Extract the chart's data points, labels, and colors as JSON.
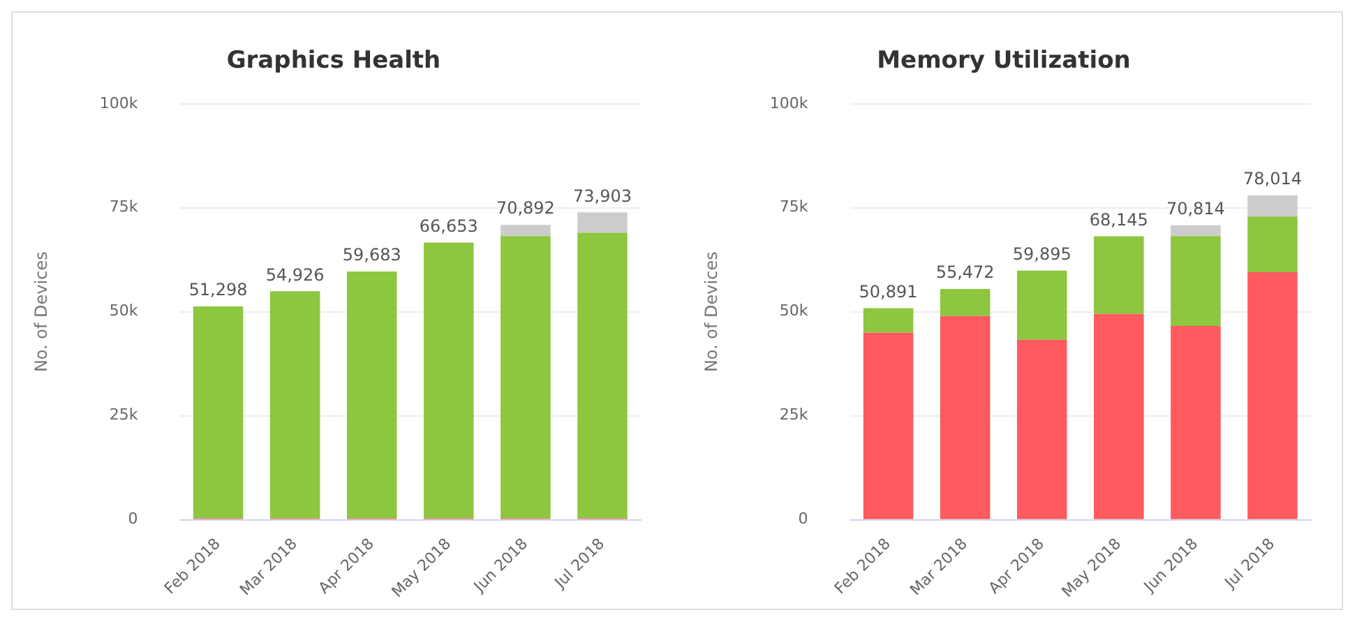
{
  "chart_data": [
    {
      "type": "bar",
      "title": "Graphics Health",
      "ylabel": "No. of Devices",
      "categories": [
        "Feb 2018",
        "Mar 2018",
        "Apr 2018",
        "May 2018",
        "Jun 2018",
        "Jul 2018"
      ],
      "stacked": true,
      "series": [
        {
          "color": "#ff5a5f",
          "values": [
            300,
            300,
            300,
            300,
            300,
            300
          ]
        },
        {
          "color": "#8dc63f",
          "values": [
            50998,
            54626,
            59383,
            66353,
            67892,
            68703
          ]
        },
        {
          "color": "#cccccc",
          "values": [
            0,
            0,
            0,
            0,
            2700,
            4900
          ]
        }
      ],
      "totals": [
        "51,298",
        "54,926",
        "59,683",
        "66,653",
        "70,892",
        "73,903"
      ],
      "ylim": [
        0,
        100000
      ],
      "yticks": [
        {
          "value": 0,
          "label": "0"
        },
        {
          "value": 25000,
          "label": "25k"
        },
        {
          "value": 50000,
          "label": "50k"
        },
        {
          "value": 75000,
          "label": "75k"
        },
        {
          "value": 100000,
          "label": "100k"
        }
      ],
      "grid": "y",
      "legend": false
    },
    {
      "type": "bar",
      "title": "Memory Utilization",
      "ylabel": "No. of Devices",
      "categories": [
        "Feb 2018",
        "Mar 2018",
        "Apr 2018",
        "May 2018",
        "Jun 2018",
        "Jul 2018"
      ],
      "stacked": true,
      "series": [
        {
          "color": "#ff5a5f",
          "values": [
            45000,
            49000,
            43300,
            49500,
            46600,
            59500
          ]
        },
        {
          "color": "#8dc63f",
          "values": [
            5891,
            6472,
            16595,
            18645,
            21614,
            13414
          ]
        },
        {
          "color": "#cccccc",
          "values": [
            0,
            0,
            0,
            0,
            2600,
            5100
          ]
        }
      ],
      "totals": [
        "50,891",
        "55,472",
        "59,895",
        "68,145",
        "70,814",
        "78,014"
      ],
      "ylim": [
        0,
        100000
      ],
      "yticks": [
        {
          "value": 0,
          "label": "0"
        },
        {
          "value": 25000,
          "label": "25k"
        },
        {
          "value": 50000,
          "label": "50k"
        },
        {
          "value": 75000,
          "label": "75k"
        },
        {
          "value": 100000,
          "label": "100k"
        }
      ],
      "grid": "y",
      "legend": false
    }
  ]
}
